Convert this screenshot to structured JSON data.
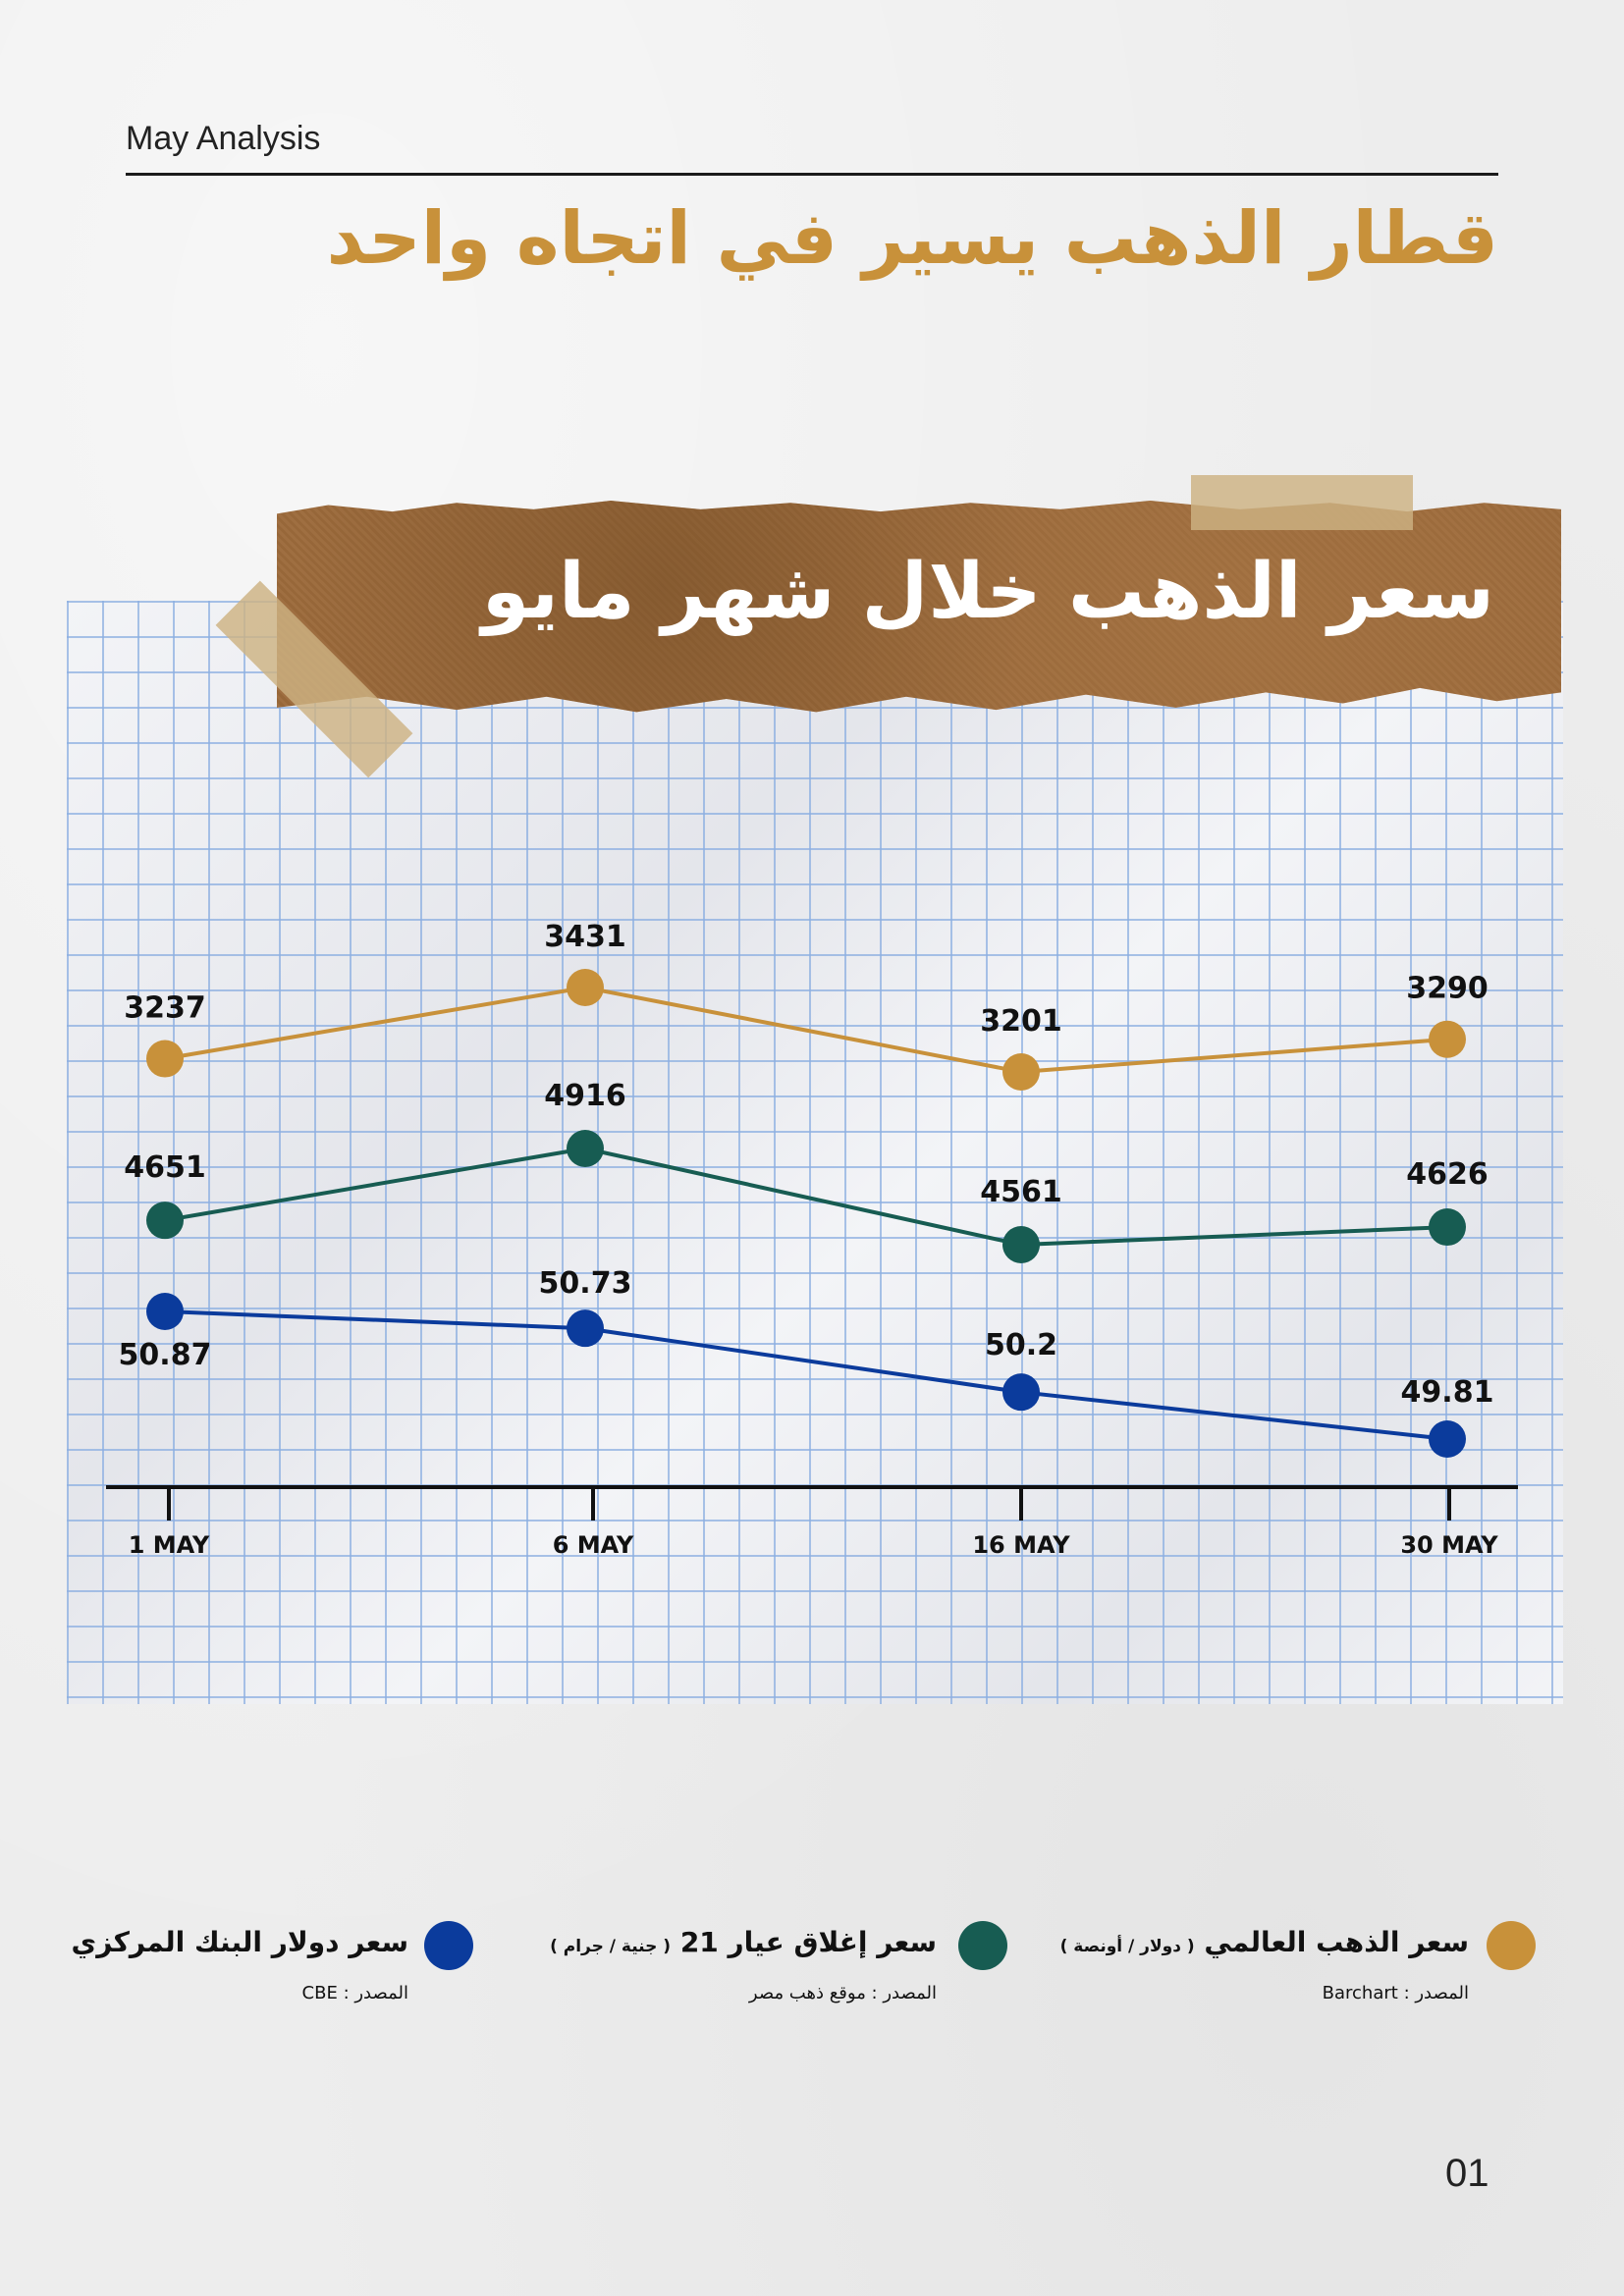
{
  "header": {
    "label": "May Analysis"
  },
  "main_title": "قطار الذهب يسير في اتجاه واحد",
  "banner_title": "سعر الذهب خلال شهر مايو",
  "colors": {
    "gold": "#c8913a",
    "green": "#175c52",
    "blue": "#0b3b9c",
    "axis": "#111111"
  },
  "chart_data": {
    "type": "line",
    "title": "سعر الذهب خلال شهر مايو",
    "categories": [
      "1 MAY",
      "6 MAY",
      "16 MAY",
      "30 MAY"
    ],
    "series": [
      {
        "name": "سعر الذهب العالمي",
        "values": [
          3237,
          3431,
          3201,
          3290
        ],
        "color": "#c8913a"
      },
      {
        "name": "سعر إغلاق عيار 21",
        "values": [
          4651,
          4916,
          4561,
          4626
        ],
        "color": "#175c52"
      },
      {
        "name": "سعر دولار البنك المركزي",
        "values": [
          50.87,
          50.73,
          50.2,
          49.81
        ],
        "color": "#0b3b9c"
      }
    ],
    "labels": [
      [
        "3237",
        "3431",
        "3201",
        "3290"
      ],
      [
        "4651",
        "4916",
        "4561",
        "4626"
      ],
      [
        "50.87",
        "50.73",
        "50.2",
        "49.81"
      ]
    ],
    "legend_position": "bottom",
    "grid": true
  },
  "legend": [
    {
      "name": "سعر الذهب العالمي",
      "unit": "( دولار / أونصة )",
      "source": "المصدر : Barchart",
      "color": "#c8913a"
    },
    {
      "name": "سعر إغلاق عيار 21",
      "unit": "( جنية / جرام )",
      "source": "المصدر : موقع ذهب مصر",
      "color": "#175c52"
    },
    {
      "name": "سعر دولار البنك المركزي",
      "unit": "",
      "source": "المصدر : CBE",
      "color": "#0b3b9c"
    }
  ],
  "page_number": "01"
}
